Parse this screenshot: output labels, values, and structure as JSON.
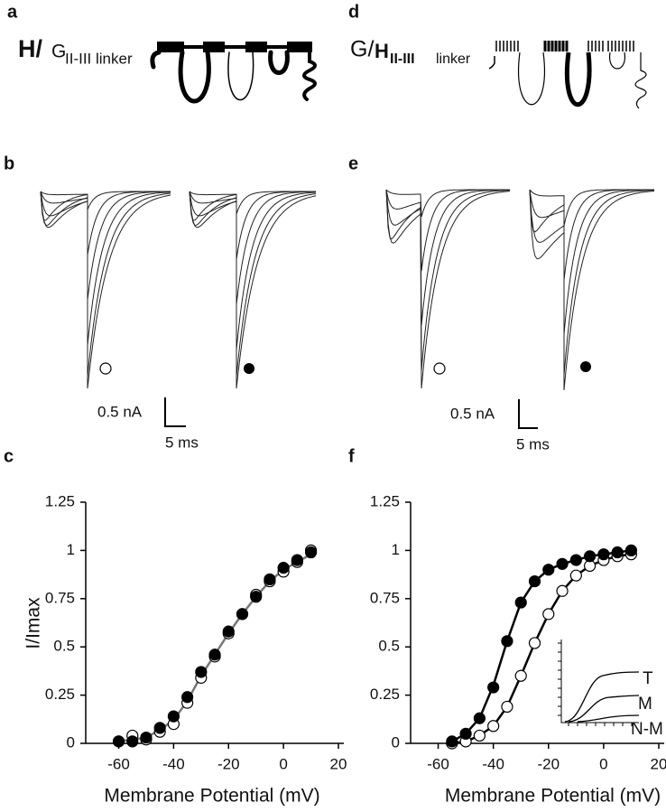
{
  "a": {
    "letter": "a",
    "parts": [
      "H/",
      "G",
      "II-III linker"
    ]
  },
  "d": {
    "letter": "d",
    "parts": [
      "G/",
      "H",
      "II-III",
      "linker"
    ]
  },
  "b": {
    "letter": "b",
    "scale_current": "0.5 nA",
    "scale_time": "5 ms"
  },
  "e": {
    "letter": "e",
    "scale_current": "0.5 nA",
    "scale_time": "5 ms"
  },
  "chart_data": [
    {
      "type": "scatter",
      "letter": "c",
      "xlabel": "Membrane Potential (mV)",
      "ylabel": "I/Imax",
      "xlim": [
        -72,
        20
      ],
      "ylim": [
        0,
        1.25
      ],
      "xticks": [
        -60,
        -40,
        -20,
        0,
        20
      ],
      "yticks": [
        0,
        0.25,
        0.5,
        0.75,
        1,
        1.25
      ],
      "x": [
        -60,
        -55,
        -50,
        -45,
        -40,
        -35,
        -30,
        -25,
        -20,
        -15,
        -10,
        -5,
        0,
        5,
        10
      ],
      "series": [
        {
          "style": "line",
          "color": "#777777",
          "values": [
            0.01,
            0.02,
            0.03,
            0.07,
            0.12,
            0.22,
            0.35,
            0.46,
            0.57,
            0.67,
            0.76,
            0.84,
            0.9,
            0.94,
            0.98
          ]
        },
        {
          "marker": "open",
          "color": "#000000",
          "values": [
            0.01,
            0.04,
            0.02,
            0.06,
            0.1,
            0.21,
            0.34,
            0.45,
            0.57,
            0.67,
            0.77,
            0.84,
            0.89,
            0.94,
            1.0
          ]
        },
        {
          "marker": "filled",
          "color": "#000000",
          "values": [
            0.01,
            0.01,
            0.03,
            0.08,
            0.14,
            0.24,
            0.37,
            0.46,
            0.58,
            0.67,
            0.76,
            0.85,
            0.91,
            0.95,
            0.99
          ]
        }
      ]
    },
    {
      "type": "scatter",
      "letter": "f",
      "xlabel": "Membrane Potential (mV)",
      "xlim": [
        -70,
        20
      ],
      "ylim": [
        0,
        1.25
      ],
      "xticks": [
        -60,
        -40,
        -20,
        0,
        20
      ],
      "yticks": [
        0,
        0.25,
        0.5,
        0.75,
        1,
        1.25
      ],
      "x": [
        -55,
        -50,
        -45,
        -40,
        -35,
        -30,
        -25,
        -20,
        -15,
        -10,
        -5,
        0,
        5,
        10
      ],
      "inset_labels": [
        "T",
        "M",
        "N-M"
      ],
      "series": [
        {
          "style": "line",
          "color": "#000000",
          "values": [
            0.01,
            0.05,
            0.13,
            0.3,
            0.53,
            0.73,
            0.84,
            0.9,
            0.93,
            0.95,
            0.97,
            0.98,
            0.99,
            1.0
          ]
        },
        {
          "style": "line",
          "color": "#000000",
          "values": [
            0.0,
            0.01,
            0.04,
            0.09,
            0.19,
            0.35,
            0.52,
            0.67,
            0.79,
            0.87,
            0.92,
            0.95,
            0.97,
            0.98
          ]
        },
        {
          "marker": "open",
          "color": "#000000",
          "values": [
            0.0,
            0.01,
            0.04,
            0.09,
            0.19,
            0.35,
            0.52,
            0.67,
            0.79,
            0.87,
            0.92,
            0.95,
            0.97,
            0.98
          ]
        },
        {
          "marker": "filled",
          "color": "#000000",
          "values": [
            0.01,
            0.05,
            0.13,
            0.29,
            0.53,
            0.73,
            0.84,
            0.9,
            0.93,
            0.95,
            0.97,
            0.98,
            0.99,
            1.0
          ]
        }
      ]
    }
  ]
}
